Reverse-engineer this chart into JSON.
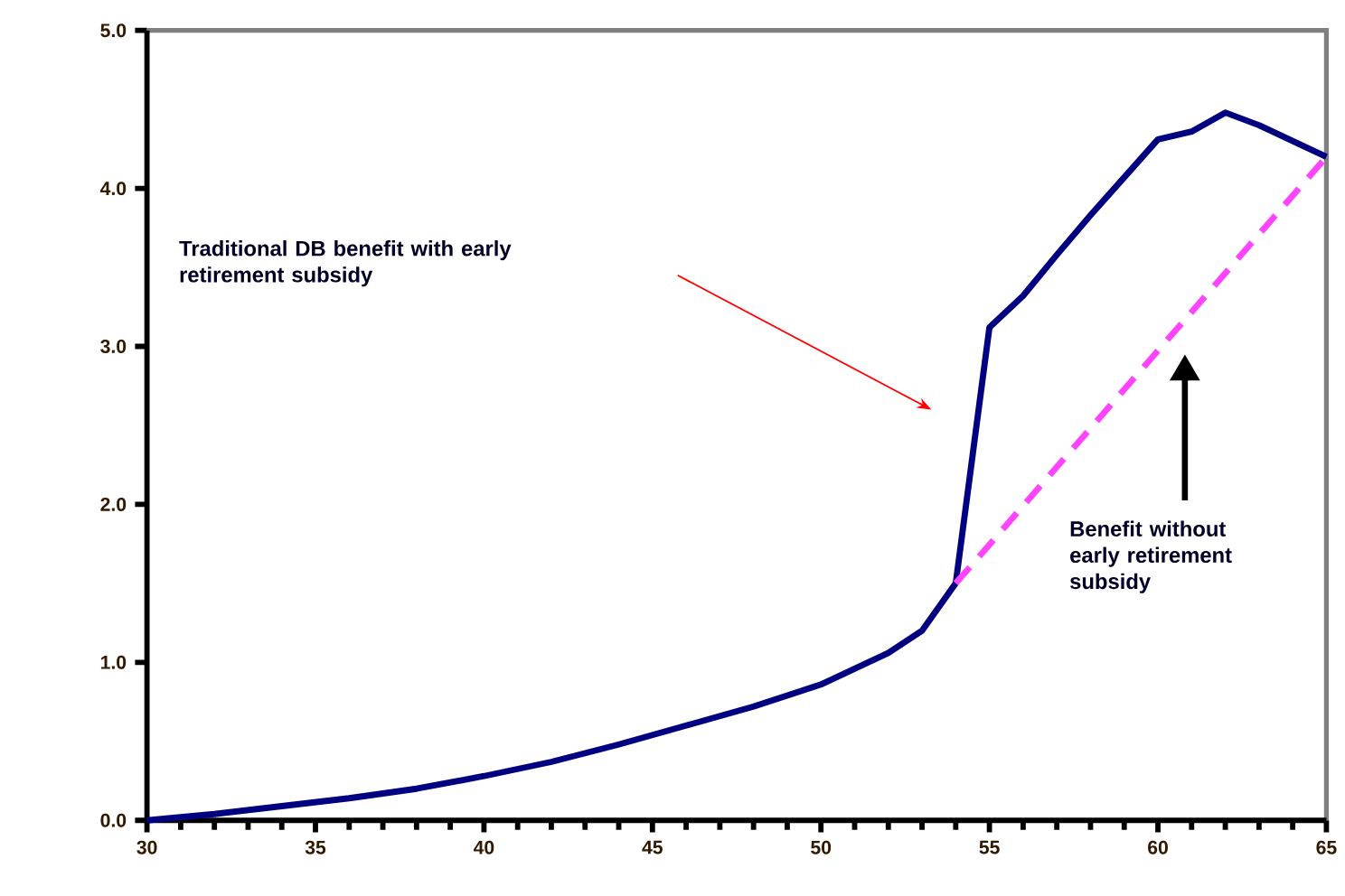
{
  "chart_data": {
    "type": "line",
    "x": [
      30,
      32,
      34,
      36,
      38,
      40,
      42,
      44,
      46,
      48,
      50,
      52,
      53,
      54,
      55,
      56,
      57,
      58,
      59,
      60,
      61,
      62,
      63,
      64,
      65
    ],
    "series": [
      {
        "color": "#000080",
        "line_style": "solid",
        "values": [
          0.0,
          0.04,
          0.09,
          0.14,
          0.2,
          0.28,
          0.37,
          0.48,
          0.6,
          0.72,
          0.86,
          1.06,
          1.2,
          1.5,
          3.12,
          3.32,
          3.58,
          3.83,
          4.07,
          4.31,
          4.36,
          4.48,
          4.4,
          4.3,
          4.2
        ]
      },
      {
        "color": "#ff44ff",
        "line_style": "dashed",
        "x": [
          54,
          65
        ],
        "values": [
          1.5,
          4.2
        ]
      }
    ],
    "xlim": [
      30,
      65
    ],
    "xticks": [
      30,
      35,
      40,
      45,
      50,
      55,
      60,
      65
    ],
    "ylim": [
      0,
      5
    ],
    "yticks": [
      {
        "value": 0,
        "label": "0.0"
      },
      {
        "value": 1,
        "label": "1.0"
      },
      {
        "value": 2,
        "label": "2.0"
      },
      {
        "value": 3,
        "label": "3.0"
      },
      {
        "value": 4,
        "label": "4.0"
      },
      {
        "value": 5,
        "label": "5.0"
      }
    ],
    "grid": false,
    "marker": "none",
    "annotations": [
      "Traditional DB  benefit with early retirement subsidy",
      "Benefit without early retirement subsidy"
    ]
  }
}
